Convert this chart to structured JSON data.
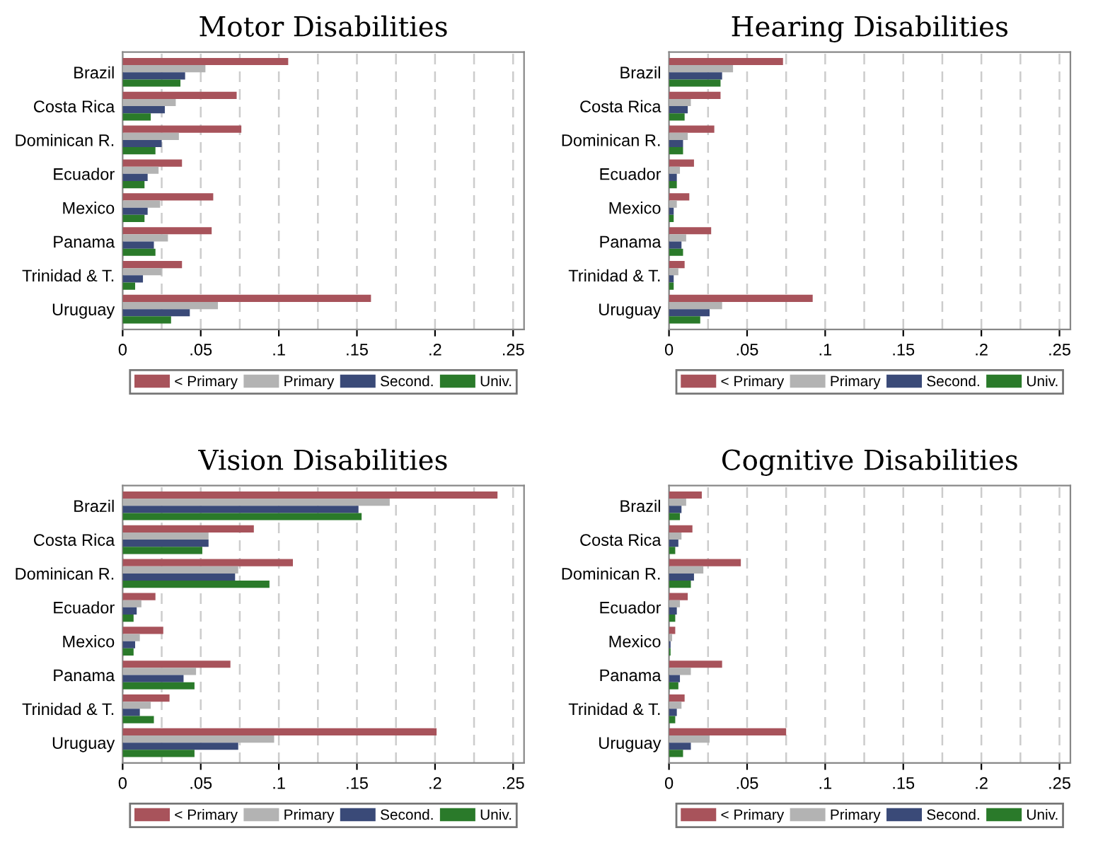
{
  "chart_data": [
    {
      "type": "bar",
      "orientation": "horizontal",
      "title": "Motor Disabilities",
      "categories": [
        "Brazil",
        "Costa Rica",
        "Dominican R.",
        "Ecuador",
        "Mexico",
        "Panama",
        "Trinidad & T.",
        "Uruguay"
      ],
      "xlim": [
        0,
        0.257
      ],
      "xticks": [
        {
          "value": 0,
          "label": "0"
        },
        {
          "value": 0.025,
          "label": null
        },
        {
          "value": 0.05,
          "label": ".05"
        },
        {
          "value": 0.075,
          "label": null
        },
        {
          "value": 0.1,
          "label": ".1"
        },
        {
          "value": 0.125,
          "label": null
        },
        {
          "value": 0.15,
          "label": ".15"
        },
        {
          "value": 0.175,
          "label": null
        },
        {
          "value": 0.2,
          "label": ".2"
        },
        {
          "value": 0.225,
          "label": null
        },
        {
          "value": 0.25,
          "label": ".25"
        }
      ],
      "grid": "x",
      "legend": "bottom",
      "series": [
        {
          "name": "< Primary",
          "color": "#a8535b",
          "values": [
            0.106,
            0.073,
            0.076,
            0.038,
            0.058,
            0.057,
            0.038,
            0.159
          ]
        },
        {
          "name": "Primary",
          "color": "#b3b3b3",
          "values": [
            0.053,
            0.034,
            0.036,
            0.023,
            0.024,
            0.029,
            0.025,
            0.061
          ]
        },
        {
          "name": "Second.",
          "color": "#3a4a78",
          "values": [
            0.04,
            0.027,
            0.025,
            0.016,
            0.016,
            0.02,
            0.013,
            0.043
          ]
        },
        {
          "name": "Univ.",
          "color": "#2a7a2a",
          "values": [
            0.037,
            0.018,
            0.021,
            0.014,
            0.014,
            0.021,
            0.008,
            0.031
          ]
        }
      ]
    },
    {
      "type": "bar",
      "orientation": "horizontal",
      "title": "Hearing Disabilities",
      "categories": [
        "Brazil",
        "Costa Rica",
        "Dominican R.",
        "Ecuador",
        "Mexico",
        "Panama",
        "Trinidad & T.",
        "Uruguay"
      ],
      "xlim": [
        0,
        0.257
      ],
      "xticks": [
        {
          "value": 0,
          "label": "0"
        },
        {
          "value": 0.025,
          "label": null
        },
        {
          "value": 0.05,
          "label": ".05"
        },
        {
          "value": 0.075,
          "label": null
        },
        {
          "value": 0.1,
          "label": ".1"
        },
        {
          "value": 0.125,
          "label": null
        },
        {
          "value": 0.15,
          "label": ".15"
        },
        {
          "value": 0.175,
          "label": null
        },
        {
          "value": 0.2,
          "label": ".2"
        },
        {
          "value": 0.225,
          "label": null
        },
        {
          "value": 0.25,
          "label": ".25"
        }
      ],
      "grid": "x",
      "legend": "bottom",
      "series": [
        {
          "name": "< Primary",
          "color": "#a8535b",
          "values": [
            0.073,
            0.033,
            0.029,
            0.016,
            0.013,
            0.027,
            0.01,
            0.092
          ]
        },
        {
          "name": "Primary",
          "color": "#b3b3b3",
          "values": [
            0.041,
            0.014,
            0.012,
            0.007,
            0.005,
            0.011,
            0.006,
            0.034
          ]
        },
        {
          "name": "Second.",
          "color": "#3a4a78",
          "values": [
            0.034,
            0.012,
            0.009,
            0.005,
            0.003,
            0.008,
            0.003,
            0.026
          ]
        },
        {
          "name": "Univ.",
          "color": "#2a7a2a",
          "values": [
            0.033,
            0.01,
            0.009,
            0.005,
            0.003,
            0.009,
            0.003,
            0.02
          ]
        }
      ]
    },
    {
      "type": "bar",
      "orientation": "horizontal",
      "title": "Vision Disabilities",
      "categories": [
        "Brazil",
        "Costa Rica",
        "Dominican R.",
        "Ecuador",
        "Mexico",
        "Panama",
        "Trinidad & T.",
        "Uruguay"
      ],
      "xlim": [
        0,
        0.257
      ],
      "xticks": [
        {
          "value": 0,
          "label": "0"
        },
        {
          "value": 0.025,
          "label": null
        },
        {
          "value": 0.05,
          "label": ".05"
        },
        {
          "value": 0.075,
          "label": null
        },
        {
          "value": 0.1,
          "label": ".1"
        },
        {
          "value": 0.125,
          "label": null
        },
        {
          "value": 0.15,
          "label": ".15"
        },
        {
          "value": 0.175,
          "label": null
        },
        {
          "value": 0.2,
          "label": ".2"
        },
        {
          "value": 0.225,
          "label": null
        },
        {
          "value": 0.25,
          "label": ".25"
        }
      ],
      "grid": "x",
      "legend": "bottom",
      "series": [
        {
          "name": "< Primary",
          "color": "#a8535b",
          "values": [
            0.24,
            0.084,
            0.109,
            0.021,
            0.026,
            0.069,
            0.03,
            0.201
          ]
        },
        {
          "name": "Primary",
          "color": "#b3b3b3",
          "values": [
            0.171,
            0.055,
            0.074,
            0.012,
            0.011,
            0.047,
            0.018,
            0.097
          ]
        },
        {
          "name": "Second.",
          "color": "#3a4a78",
          "values": [
            0.151,
            0.055,
            0.072,
            0.009,
            0.008,
            0.039,
            0.011,
            0.074
          ]
        },
        {
          "name": "Univ.",
          "color": "#2a7a2a",
          "values": [
            0.153,
            0.051,
            0.094,
            0.007,
            0.007,
            0.046,
            0.02,
            0.046
          ]
        }
      ]
    },
    {
      "type": "bar",
      "orientation": "horizontal",
      "title": "Cognitive Disabilities",
      "categories": [
        "Brazil",
        "Costa Rica",
        "Dominican R.",
        "Ecuador",
        "Mexico",
        "Panama",
        "Trinidad & T.",
        "Uruguay"
      ],
      "xlim": [
        0,
        0.257
      ],
      "xticks": [
        {
          "value": 0,
          "label": "0"
        },
        {
          "value": 0.025,
          "label": null
        },
        {
          "value": 0.05,
          "label": ".05"
        },
        {
          "value": 0.075,
          "label": null
        },
        {
          "value": 0.1,
          "label": ".1"
        },
        {
          "value": 0.125,
          "label": null
        },
        {
          "value": 0.15,
          "label": ".15"
        },
        {
          "value": 0.175,
          "label": null
        },
        {
          "value": 0.2,
          "label": ".2"
        },
        {
          "value": 0.225,
          "label": null
        },
        {
          "value": 0.25,
          "label": ".25"
        }
      ],
      "grid": "x",
      "legend": "bottom",
      "series": [
        {
          "name": "< Primary",
          "color": "#a8535b",
          "values": [
            0.021,
            0.015,
            0.046,
            0.012,
            0.004,
            0.034,
            0.01,
            0.075
          ]
        },
        {
          "name": "Primary",
          "color": "#b3b3b3",
          "values": [
            0.011,
            0.008,
            0.022,
            0.007,
            0.002,
            0.014,
            0.008,
            0.026
          ]
        },
        {
          "name": "Second.",
          "color": "#3a4a78",
          "values": [
            0.008,
            0.006,
            0.016,
            0.005,
            0.001,
            0.007,
            0.005,
            0.014
          ]
        },
        {
          "name": "Univ.",
          "color": "#2a7a2a",
          "values": [
            0.007,
            0.004,
            0.014,
            0.004,
            0.001,
            0.006,
            0.004,
            0.009
          ]
        }
      ]
    }
  ]
}
